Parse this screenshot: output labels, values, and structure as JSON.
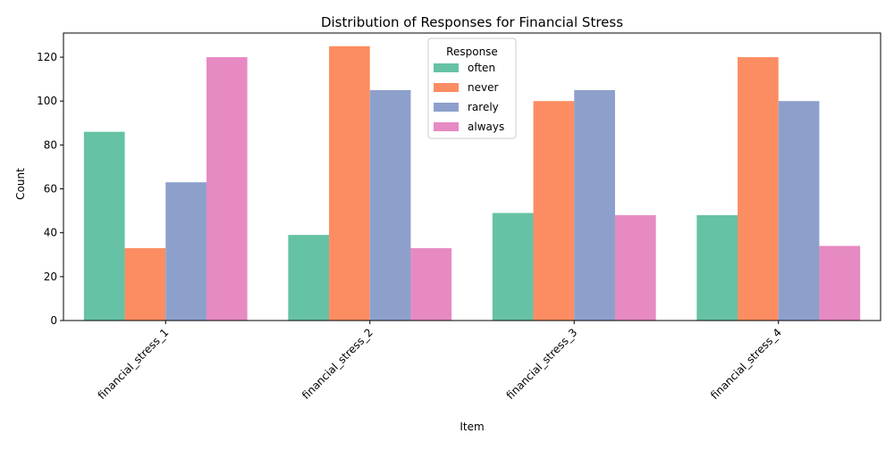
{
  "chart_data": {
    "type": "bar",
    "title": "Distribution of Responses for Financial Stress",
    "xlabel": "Item",
    "ylabel": "Count",
    "categories": [
      "financial_stress_1",
      "financial_stress_2",
      "financial_stress_3",
      "financial_stress_4"
    ],
    "ylim": [
      0,
      131
    ],
    "yticks": [
      0,
      20,
      40,
      60,
      80,
      100,
      120
    ],
    "grid": false,
    "legend": {
      "title": "Response",
      "placement": "top-center"
    },
    "series": [
      {
        "name": "often",
        "color": "#66c2a5",
        "values": [
          86,
          39,
          49,
          48
        ]
      },
      {
        "name": "never",
        "color": "#fc8d62",
        "values": [
          33,
          125,
          100,
          120
        ]
      },
      {
        "name": "rarely",
        "color": "#8da0cb",
        "values": [
          63,
          105,
          105,
          100
        ]
      },
      {
        "name": "always",
        "color": "#e78ac3",
        "values": [
          120,
          33,
          48,
          34
        ]
      }
    ]
  }
}
